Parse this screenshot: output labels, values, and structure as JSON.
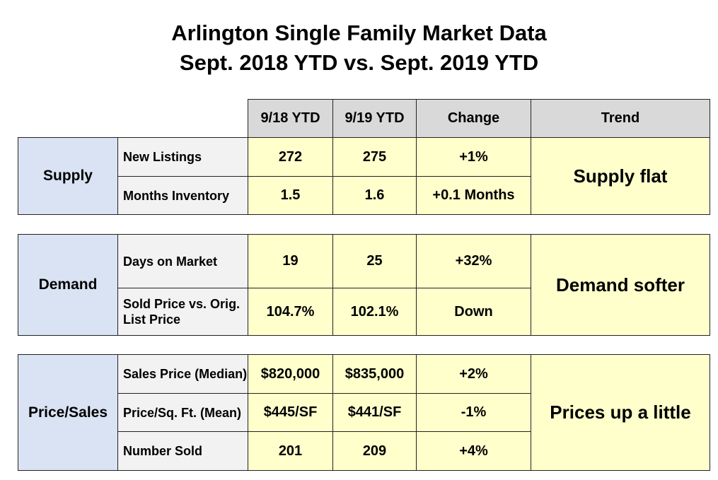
{
  "title": {
    "line1": "Arlington Single Family Market Data",
    "line2": "Sept. 2018 YTD vs. Sept. 2019 YTD"
  },
  "headers": [
    "9/18 YTD",
    "9/19 YTD",
    "Change",
    "Trend"
  ],
  "colors": {
    "header": "#d9d9d9",
    "category": "#dae3f3",
    "label": "#f2f2f2",
    "value": "#ffffcc"
  },
  "groups": [
    {
      "category": "Supply",
      "trend": "Supply flat",
      "rows": [
        {
          "label": "New Listings",
          "y2018": "272",
          "y2019": "275",
          "change": "+1%"
        },
        {
          "label": "Months Inventory",
          "y2018": "1.5",
          "y2019": "1.6",
          "change": "+0.1 Months"
        }
      ]
    },
    {
      "category": "Demand",
      "trend": "Demand softer",
      "rows": [
        {
          "label": "Days on Market",
          "y2018": "19",
          "y2019": "25",
          "change": "+32%"
        },
        {
          "label": "Sold Price vs. Orig. List Price",
          "y2018": "104.7%",
          "y2019": "102.1%",
          "change": "Down"
        }
      ]
    },
    {
      "category": "Price/Sales",
      "trend": "Prices up a little",
      "rows": [
        {
          "label": "Sales Price (Median)",
          "y2018": "$820,000",
          "y2019": "$835,000",
          "change": "+2%"
        },
        {
          "label": "Price/Sq. Ft. (Mean)",
          "y2018": "$445/SF",
          "y2019": "$441/SF",
          "change": "-1%"
        },
        {
          "label": "Number Sold",
          "y2018": "201",
          "y2019": "209",
          "change": "+4%"
        }
      ]
    }
  ]
}
